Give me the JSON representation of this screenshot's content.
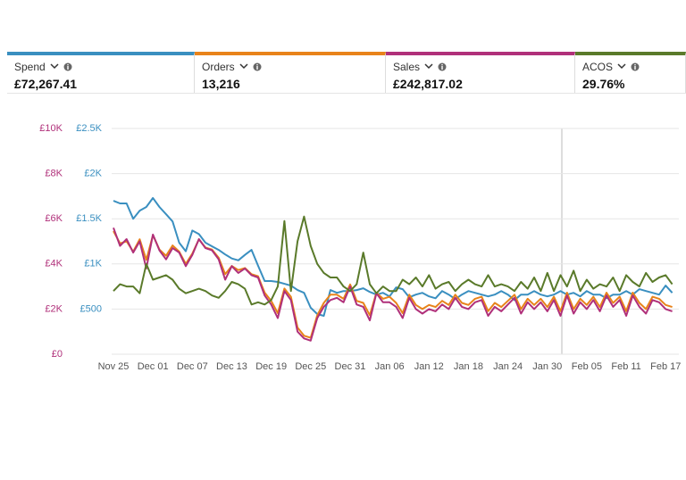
{
  "chart_data": {
    "type": "line",
    "categories": [
      "Nov 25",
      null,
      null,
      null,
      null,
      null,
      "Dec 01",
      null,
      null,
      null,
      null,
      null,
      "Dec 07",
      null,
      null,
      null,
      null,
      null,
      "Dec 13",
      null,
      null,
      null,
      null,
      null,
      "Dec 19",
      null,
      null,
      null,
      null,
      null,
      "Dec 25",
      null,
      null,
      null,
      null,
      null,
      "Dec 31",
      null,
      null,
      null,
      null,
      null,
      "Jan 06",
      null,
      null,
      null,
      null,
      null,
      "Jan 12",
      null,
      null,
      null,
      null,
      null,
      "Jan 18",
      null,
      null,
      null,
      null,
      null,
      "Jan 24",
      null,
      null,
      null,
      null,
      null,
      "Jan 30",
      null,
      null,
      null,
      null,
      null,
      "Feb 05",
      null,
      null,
      null,
      null,
      null,
      "Feb 11",
      null,
      null,
      null,
      null,
      null,
      "Feb 17",
      null
    ],
    "ylim": [
      0,
      2500
    ],
    "yticks": [
      {
        "value": 500,
        "label": "£500"
      },
      {
        "value": 1000,
        "label": "£1K"
      },
      {
        "value": 1500,
        "label": "£1.5K"
      },
      {
        "value": 2000,
        "label": "£2K"
      },
      {
        "value": 2500,
        "label": "£2.5K"
      }
    ],
    "y2lim": [
      0,
      10000
    ],
    "y2ticks": [
      {
        "value": 0,
        "label": "£0"
      },
      {
        "value": 2000,
        "label": "£2K"
      },
      {
        "value": 4000,
        "label": "£4K"
      },
      {
        "value": 6000,
        "label": "£6K"
      },
      {
        "value": 8000,
        "label": "£8K"
      },
      {
        "value": 10000,
        "label": "£10K"
      }
    ],
    "y3lim": [
      0,
      550
    ],
    "y4lim": [
      0,
      100
    ],
    "grid": true,
    "series": [
      {
        "name": "Spend",
        "total": "£72,267.41",
        "color": "#3a8fc0",
        "axis": "y",
        "values": [
          1700,
          1670,
          1670,
          1500,
          1590,
          1630,
          1730,
          1630,
          1550,
          1470,
          1235,
          1140,
          1370,
          1330,
          1235,
          1195,
          1155,
          1105,
          1060,
          1040,
          1100,
          1155,
          980,
          810,
          810,
          800,
          780,
          760,
          710,
          680,
          515,
          445,
          425,
          710,
          680,
          700,
          700,
          710,
          730,
          690,
          660,
          680,
          640,
          740,
          720,
          630,
          660,
          680,
          640,
          620,
          700,
          660,
          610,
          660,
          700,
          680,
          660,
          640,
          660,
          700,
          660,
          600,
          660,
          660,
          700,
          660,
          640,
          660,
          700,
          660,
          680,
          640,
          700,
          660,
          660,
          620,
          660,
          660,
          700,
          660,
          720,
          700,
          680,
          660,
          760,
          680
        ]
      },
      {
        "name": "Orders",
        "total": "13,216",
        "color": "#e8831a",
        "axis": "y3",
        "values": [
          300,
          270,
          275,
          250,
          280,
          230,
          290,
          255,
          240,
          265,
          250,
          220,
          245,
          280,
          260,
          255,
          235,
          195,
          215,
          205,
          210,
          195,
          190,
          150,
          130,
          100,
          160,
          140,
          65,
          45,
          40,
          95,
          125,
          145,
          145,
          135,
          170,
          130,
          125,
          95,
          150,
          135,
          140,
          125,
          100,
          145,
          120,
          110,
          120,
          115,
          130,
          120,
          145,
          125,
          120,
          135,
          140,
          105,
          125,
          115,
          130,
          145,
          110,
          135,
          120,
          135,
          115,
          140,
          105,
          150,
          110,
          135,
          120,
          140,
          115,
          150,
          125,
          140,
          105,
          150,
          125,
          110,
          140,
          135,
          120,
          115
        ]
      },
      {
        "name": "Sales",
        "total": "£242,817.02",
        "color": "#b0307a",
        "axis": "y2",
        "values": [
          5600,
          4800,
          5100,
          4500,
          5000,
          3800,
          5300,
          4600,
          4200,
          4700,
          4500,
          3900,
          4400,
          5100,
          4700,
          4600,
          4200,
          3300,
          3900,
          3600,
          3800,
          3500,
          3400,
          2600,
          2200,
          1600,
          2800,
          2400,
          1000,
          700,
          600,
          1600,
          2100,
          2400,
          2500,
          2300,
          3000,
          2200,
          2100,
          1500,
          2700,
          2300,
          2300,
          2100,
          1600,
          2500,
          2000,
          1800,
          2000,
          1900,
          2200,
          2000,
          2500,
          2100,
          2000,
          2300,
          2400,
          1700,
          2100,
          1900,
          2200,
          2500,
          1800,
          2300,
          2000,
          2300,
          1900,
          2400,
          1700,
          2600,
          1800,
          2300,
          2000,
          2400,
          1900,
          2600,
          2100,
          2400,
          1700,
          2600,
          2100,
          1800,
          2400,
          2300,
          2000,
          1900
        ]
      },
      {
        "name": "ACOS",
        "total": "29.76%",
        "color": "#5a7a2a",
        "axis": "y4",
        "values": [
          28,
          31,
          30,
          30,
          27,
          40,
          33,
          34,
          35,
          33,
          29,
          27,
          28,
          29,
          28,
          26,
          25,
          28,
          32,
          31,
          29,
          22,
          23,
          22,
          24,
          30,
          59,
          28,
          50,
          61,
          48,
          40,
          36,
          34,
          34,
          30,
          28,
          31,
          45,
          31,
          27,
          30,
          28,
          28,
          33,
          31,
          34,
          30,
          35,
          29,
          31,
          32,
          28,
          31,
          33,
          31,
          30,
          35,
          30,
          31,
          30,
          28,
          32,
          29,
          34,
          28,
          36,
          28,
          35,
          30,
          37,
          28,
          33,
          29,
          31,
          30,
          34,
          28,
          35,
          32,
          30,
          36,
          32,
          34,
          35,
          31
        ]
      }
    ]
  }
}
